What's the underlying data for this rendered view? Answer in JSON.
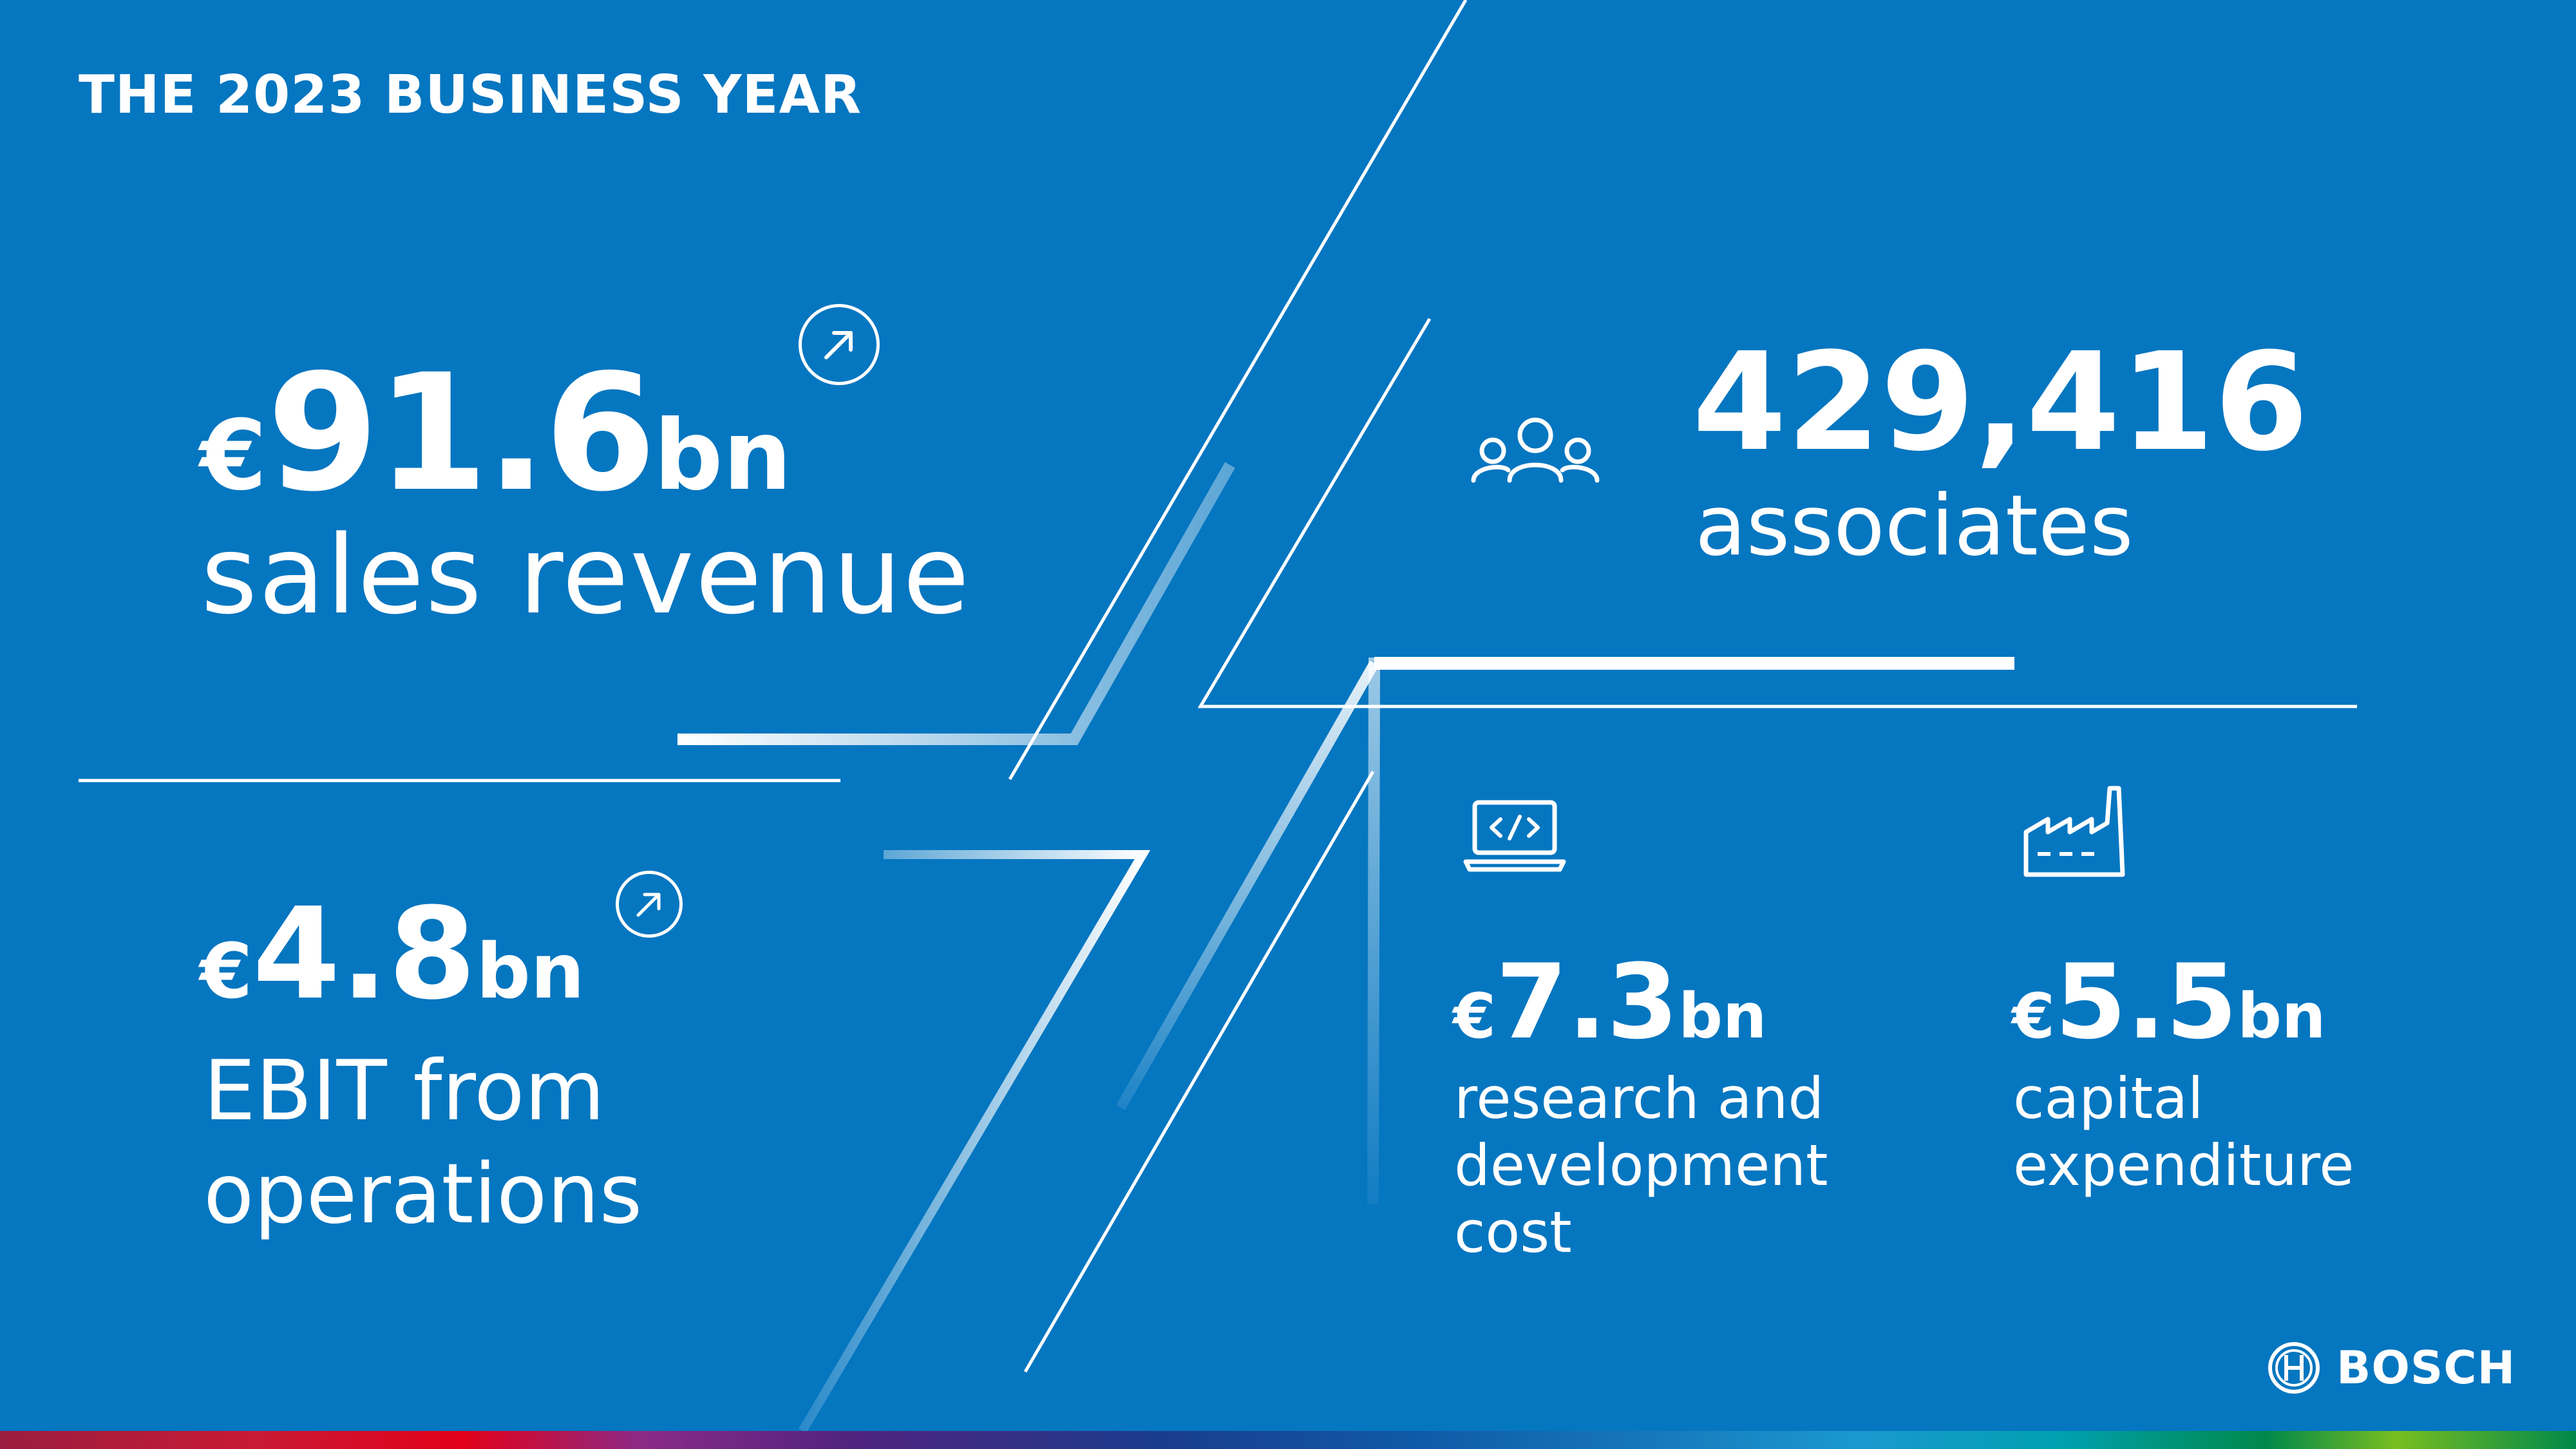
{
  "title": "THE 2023 BUSINESS YEAR",
  "kpis": {
    "sales": {
      "currency": "€",
      "value": "91.6",
      "unit": "bn",
      "label": "sales revenue",
      "trend_icon": "arrow-up-right-icon"
    },
    "ebit": {
      "currency": "€",
      "value": "4.8",
      "unit": "bn",
      "label_line1": "EBIT from",
      "label_line2": "operations",
      "trend_icon": "arrow-up-right-icon"
    },
    "associates": {
      "value": "429,416",
      "label": "associates",
      "icon": "people-icon"
    },
    "rd": {
      "currency": "€",
      "value": "7.3",
      "unit": "bn",
      "label_line1": "research and",
      "label_line2": "development",
      "label_line3": "cost",
      "icon": "laptop-code-icon"
    },
    "capex": {
      "currency": "€",
      "value": "5.5",
      "unit": "bn",
      "label_line1": "capital",
      "label_line2": "expenditure",
      "icon": "factory-icon"
    }
  },
  "brand": {
    "name": "BOSCH",
    "icon": "bosch-armature-logo-icon"
  },
  "colors": {
    "background": "#0576c0",
    "text": "#ffffff"
  }
}
